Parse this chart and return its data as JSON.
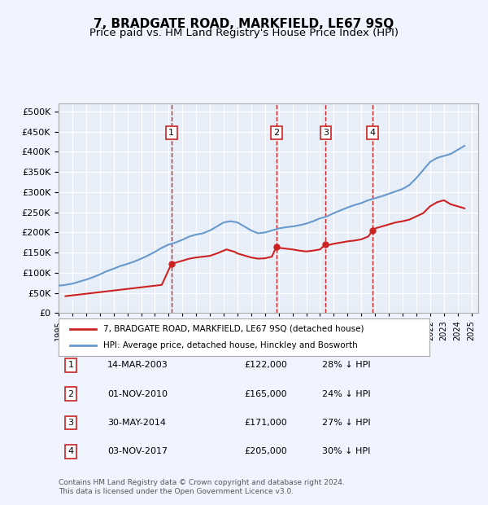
{
  "title": "7, BRADGATE ROAD, MARKFIELD, LE67 9SQ",
  "subtitle": "Price paid vs. HM Land Registry's House Price Index (HPI)",
  "title_fontsize": 11,
  "subtitle_fontsize": 9.5,
  "background_color": "#f0f4ff",
  "plot_bg_color": "#e8eef8",
  "hpi_color": "#6699cc",
  "price_color": "#cc2222",
  "dashed_line_color": "#cc2222",
  "ylim": [
    0,
    520000
  ],
  "yticks": [
    0,
    50000,
    100000,
    150000,
    200000,
    250000,
    300000,
    350000,
    400000,
    450000,
    500000
  ],
  "xlim_start": 1995.0,
  "xlim_end": 2025.5,
  "xtick_years": [
    1995,
    1996,
    1997,
    1998,
    1999,
    2000,
    2001,
    2002,
    2003,
    2004,
    2005,
    2006,
    2007,
    2008,
    2009,
    2010,
    2011,
    2012,
    2013,
    2014,
    2015,
    2016,
    2017,
    2018,
    2019,
    2020,
    2021,
    2022,
    2023,
    2024,
    2025
  ],
  "sale_dates": [
    2003.2,
    2010.83,
    2014.41,
    2017.83
  ],
  "sale_prices": [
    122000,
    165000,
    171000,
    205000
  ],
  "sale_labels": [
    "1",
    "2",
    "3",
    "4"
  ],
  "legend_label_price": "7, BRADGATE ROAD, MARKFIELD, LE67 9SQ (detached house)",
  "legend_label_hpi": "HPI: Average price, detached house, Hinckley and Bosworth",
  "table_rows": [
    [
      "1",
      "14-MAR-2003",
      "£122,000",
      "28% ↓ HPI"
    ],
    [
      "2",
      "01-NOV-2010",
      "£165,000",
      "24% ↓ HPI"
    ],
    [
      "3",
      "30-MAY-2014",
      "£171,000",
      "27% ↓ HPI"
    ],
    [
      "4",
      "03-NOV-2017",
      "£205,000",
      "30% ↓ HPI"
    ]
  ],
  "footer_text": "Contains HM Land Registry data © Crown copyright and database right 2024.\nThis data is licensed under the Open Government Licence v3.0.",
  "hpi_x": [
    1995,
    1995.5,
    1996,
    1996.5,
    1997,
    1997.5,
    1998,
    1998.5,
    1999,
    1999.5,
    2000,
    2000.5,
    2001,
    2001.5,
    2002,
    2002.5,
    2003,
    2003.5,
    2004,
    2004.5,
    2005,
    2005.5,
    2006,
    2006.5,
    2007,
    2007.5,
    2008,
    2008.5,
    2009,
    2009.5,
    2010,
    2010.5,
    2011,
    2011.5,
    2012,
    2012.5,
    2013,
    2013.5,
    2014,
    2014.5,
    2015,
    2015.5,
    2016,
    2016.5,
    2017,
    2017.5,
    2018,
    2018.5,
    2019,
    2019.5,
    2020,
    2020.5,
    2021,
    2021.5,
    2022,
    2022.5,
    2023,
    2023.5,
    2024,
    2024.5
  ],
  "hpi_y": [
    68000,
    70000,
    73000,
    78000,
    83000,
    89000,
    96000,
    104000,
    110000,
    117000,
    122000,
    128000,
    135000,
    143000,
    152000,
    162000,
    170000,
    175000,
    182000,
    190000,
    195000,
    198000,
    205000,
    215000,
    225000,
    228000,
    225000,
    215000,
    205000,
    198000,
    200000,
    205000,
    210000,
    213000,
    215000,
    218000,
    222000,
    228000,
    235000,
    240000,
    248000,
    255000,
    262000,
    268000,
    273000,
    280000,
    285000,
    290000,
    296000,
    302000,
    308000,
    318000,
    335000,
    355000,
    375000,
    385000,
    390000,
    395000,
    405000,
    415000
  ],
  "price_x": [
    1995.5,
    1996,
    1996.5,
    1997,
    1997.5,
    1998,
    1998.5,
    1999,
    1999.5,
    2000,
    2000.5,
    2001,
    2001.5,
    2002,
    2002.5,
    2003.2,
    2003.5,
    2004,
    2004.5,
    2005,
    2005.5,
    2006,
    2006.5,
    2007,
    2007.2,
    2007.8,
    2008,
    2008.5,
    2009,
    2009.5,
    2010,
    2010.5,
    2010.83,
    2011,
    2011.5,
    2012,
    2012.5,
    2013,
    2013.5,
    2014,
    2014.41,
    2014.5,
    2015,
    2015.5,
    2016,
    2016.5,
    2017,
    2017.5,
    2017.83,
    2018,
    2018.5,
    2019,
    2019.5,
    2020,
    2020.5,
    2021,
    2021.5,
    2022,
    2022.5,
    2023,
    2023.5,
    2024,
    2024.5
  ],
  "price_y": [
    42000,
    44000,
    46000,
    48000,
    50000,
    52000,
    54000,
    56000,
    58000,
    60000,
    62000,
    64000,
    66000,
    68000,
    70000,
    122000,
    125000,
    130000,
    135000,
    138000,
    140000,
    142000,
    148000,
    155000,
    158000,
    152000,
    148000,
    143000,
    138000,
    135000,
    136000,
    140000,
    165000,
    162000,
    160000,
    158000,
    155000,
    153000,
    155000,
    158000,
    171000,
    168000,
    172000,
    175000,
    178000,
    180000,
    183000,
    190000,
    205000,
    210000,
    215000,
    220000,
    225000,
    228000,
    232000,
    240000,
    248000,
    265000,
    275000,
    280000,
    270000,
    265000,
    260000
  ]
}
